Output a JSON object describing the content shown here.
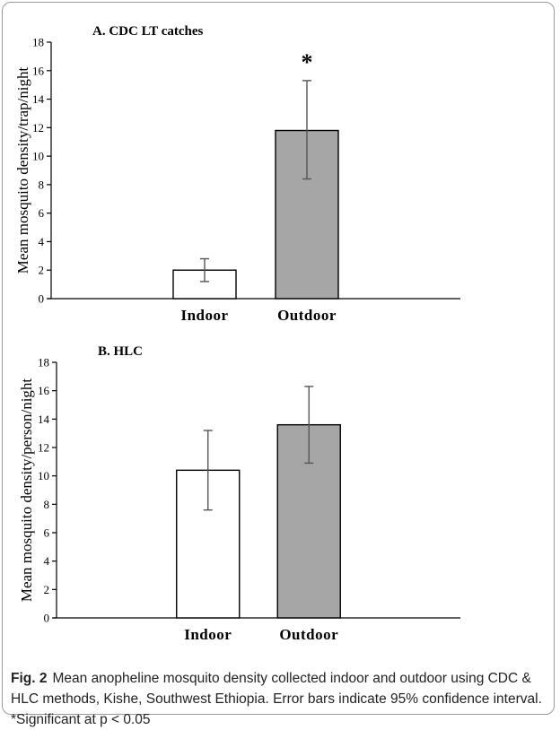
{
  "chart_data": [
    {
      "type": "bar",
      "title": "A. CDC LT catches",
      "ylabel": "Mean mosquito density/trap/night",
      "xlabel": "",
      "categories": [
        "Indoor",
        "Outdoor"
      ],
      "values": [
        2.0,
        11.8
      ],
      "error_low": [
        1.2,
        8.4
      ],
      "error_high": [
        2.8,
        15.3
      ],
      "ylim": [
        0,
        18
      ],
      "yticks": [
        0,
        2,
        4,
        6,
        8,
        10,
        12,
        14,
        16,
        18
      ],
      "bar_colors": [
        "#ffffff",
        "#a6a6a6"
      ],
      "annotation": "*",
      "grid": false
    },
    {
      "type": "bar",
      "title": "B. HLC",
      "ylabel": "Mean mosquito density/person/night",
      "xlabel": "",
      "categories": [
        "Indoor",
        "Outdoor"
      ],
      "values": [
        10.4,
        13.6
      ],
      "error_low": [
        7.6,
        10.9
      ],
      "error_high": [
        13.2,
        16.3
      ],
      "ylim": [
        0,
        18
      ],
      "yticks": [
        0,
        2,
        4,
        6,
        8,
        10,
        12,
        14,
        16,
        18
      ],
      "bar_colors": [
        "#ffffff",
        "#a6a6a6"
      ],
      "annotation": "",
      "grid": false
    }
  ],
  "caption": {
    "label": "Fig. 2",
    "text": "Mean anopheline mosquito density collected indoor and outdoor using CDC & HLC methods, Kishe, Southwest Ethiopia. Error bars indicate 95% confidence interval. *Significant at p < 0.05"
  }
}
